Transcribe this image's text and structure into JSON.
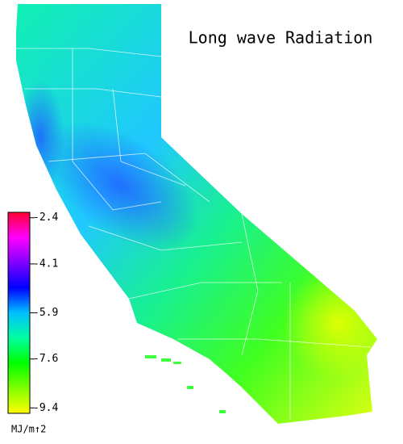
{
  "title": "Long wave Radiation",
  "legend": {
    "range": [
      -2.2,
      -9.6
    ],
    "ticks": [
      -2.4,
      -4.1,
      -5.9,
      -7.6,
      -9.4
    ],
    "unit": "MJ/m↑2",
    "colors": [
      "#ff0030",
      "#ff00ff",
      "#8000ff",
      "#0000ff",
      "#00c0ff",
      "#00ffa0",
      "#00ff00",
      "#80ff00",
      "#ffff00"
    ]
  }
}
